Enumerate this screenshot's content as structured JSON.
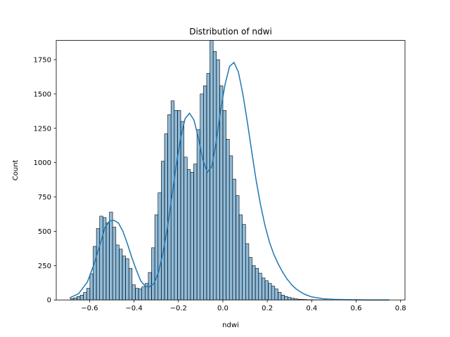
{
  "chart_data": {
    "type": "bar",
    "subtype": "histogram-with-kde",
    "title": "Distribution of ndwi",
    "xlabel": "ndwi",
    "ylabel": "Count",
    "xlim": [
      -0.75,
      0.82
    ],
    "ylim": [
      0,
      1890
    ],
    "xticks": [
      -0.6,
      -0.4,
      -0.2,
      0.0,
      0.2,
      0.4,
      0.6,
      0.8
    ],
    "xtick_labels": [
      "−0.6",
      "−0.4",
      "−0.2",
      "0.0",
      "0.2",
      "0.4",
      "0.6",
      "0.8"
    ],
    "yticks": [
      0,
      250,
      500,
      750,
      1000,
      1250,
      1500,
      1750
    ],
    "ytick_labels": [
      "0",
      "250",
      "500",
      "750",
      "1000",
      "1250",
      "1500",
      "1750"
    ],
    "grid": false,
    "bin_width": 0.0146,
    "bin_centers": [
      -0.6787,
      -0.6641,
      -0.6495,
      -0.6349,
      -0.6203,
      -0.6057,
      -0.5911,
      -0.5765,
      -0.5619,
      -0.5473,
      -0.5327,
      -0.5181,
      -0.5035,
      -0.4889,
      -0.4743,
      -0.4597,
      -0.4451,
      -0.4305,
      -0.4159,
      -0.4013,
      -0.3867,
      -0.3721,
      -0.3575,
      -0.3429,
      -0.3283,
      -0.3137,
      -0.2991,
      -0.2845,
      -0.2699,
      -0.2553,
      -0.2407,
      -0.2261,
      -0.2115,
      -0.1969,
      -0.1823,
      -0.1677,
      -0.1531,
      -0.1385,
      -0.1239,
      -0.1093,
      -0.0947,
      -0.0801,
      -0.0655,
      -0.0509,
      -0.0363,
      -0.0217,
      -0.0071,
      0.0075,
      0.0221,
      0.0367,
      0.0513,
      0.0659,
      0.0805,
      0.0951,
      0.1097,
      0.1243,
      0.1389,
      0.1535,
      0.1681,
      0.1827,
      0.1973,
      0.2119,
      0.2265,
      0.2411,
      0.2557,
      0.2703,
      0.2849,
      0.2995,
      0.3141,
      0.3287,
      0.3433,
      0.3579,
      0.3725,
      0.3871,
      0.4017,
      0.4163,
      0.4309,
      0.4455,
      0.4601,
      0.4747,
      0.4893,
      0.5039,
      0.5185,
      0.5331,
      0.5477,
      0.5623,
      0.5769,
      0.5915,
      0.6061,
      0.6207,
      0.6353,
      0.6499,
      0.6645,
      0.6791,
      0.6937,
      0.7083,
      0.7229,
      0.7375,
      0.7521
    ],
    "values": [
      10,
      15,
      25,
      35,
      55,
      85,
      190,
      390,
      520,
      610,
      600,
      560,
      640,
      530,
      400,
      370,
      320,
      300,
      230,
      110,
      85,
      80,
      95,
      120,
      200,
      380,
      620,
      780,
      1010,
      1210,
      1350,
      1450,
      1380,
      1380,
      1300,
      1040,
      950,
      930,
      990,
      1240,
      1500,
      1560,
      1650,
      1890,
      1810,
      1750,
      1560,
      1380,
      1170,
      1050,
      880,
      760,
      620,
      550,
      410,
      310,
      250,
      230,
      195,
      160,
      140,
      120,
      100,
      80,
      55,
      35,
      25,
      18,
      12,
      8,
      5,
      4,
      3,
      2,
      2,
      1,
      1,
      1,
      1,
      0,
      0,
      0,
      0,
      0,
      0,
      0,
      0,
      0,
      0,
      0,
      0,
      0,
      0,
      0,
      0,
      0,
      0,
      0,
      0
    ],
    "kde": {
      "x": [
        -0.69,
        -0.65,
        -0.61,
        -0.58,
        -0.55,
        -0.53,
        -0.51,
        -0.49,
        -0.47,
        -0.45,
        -0.43,
        -0.41,
        -0.39,
        -0.37,
        -0.35,
        -0.33,
        -0.31,
        -0.29,
        -0.27,
        -0.25,
        -0.23,
        -0.21,
        -0.19,
        -0.17,
        -0.15,
        -0.13,
        -0.11,
        -0.09,
        -0.07,
        -0.05,
        -0.03,
        -0.01,
        0.01,
        0.03,
        0.05,
        0.07,
        0.09,
        0.11,
        0.13,
        0.15,
        0.17,
        0.19,
        0.21,
        0.23,
        0.25,
        0.27,
        0.29,
        0.31,
        0.33,
        0.35,
        0.37,
        0.4,
        0.45,
        0.5,
        0.55,
        0.6,
        0.65,
        0.7,
        0.75
      ],
      "y": [
        15,
        45,
        130,
        260,
        420,
        530,
        575,
        580,
        560,
        500,
        410,
        310,
        220,
        140,
        100,
        95,
        120,
        200,
        340,
        520,
        750,
        980,
        1180,
        1320,
        1360,
        1310,
        1180,
        1020,
        930,
        970,
        1150,
        1380,
        1570,
        1700,
        1730,
        1660,
        1500,
        1300,
        1080,
        870,
        690,
        540,
        420,
        330,
        260,
        200,
        150,
        110,
        80,
        58,
        40,
        22,
        9,
        4,
        2,
        1,
        0,
        0,
        0
      ]
    },
    "colors": {
      "bar_fill": "#1f77b4",
      "bar_fill_opacity": 0.5,
      "bar_edge": "#000000",
      "kde_line": "#1f77b4"
    }
  }
}
